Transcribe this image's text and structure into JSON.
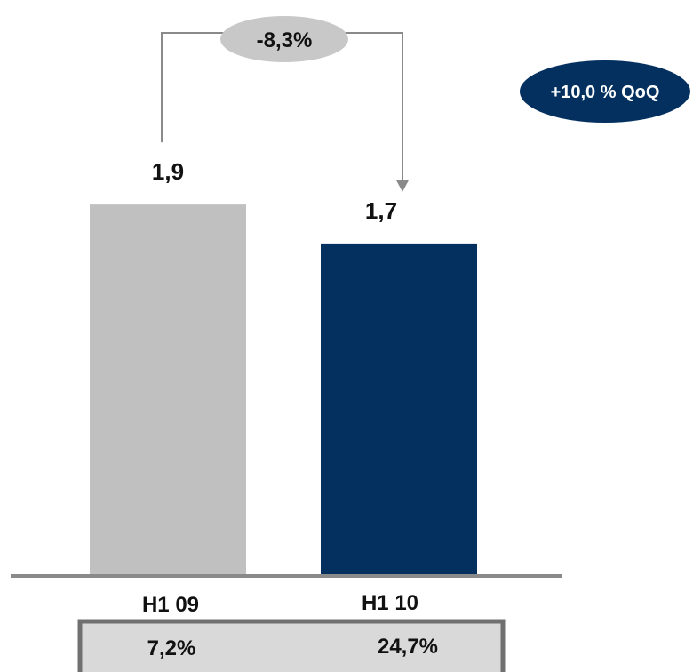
{
  "chart_data": {
    "type": "bar",
    "categories": [
      "H1 09",
      "H1 10"
    ],
    "values": [
      1.9,
      1.7
    ],
    "data_labels": [
      "1,9",
      "1,7"
    ],
    "ylim": [
      0,
      2.7
    ],
    "bar_colors": [
      "#c0c0c0",
      "#03305f"
    ],
    "change_label": "-8,3%",
    "qoq_badge": "+10,0 % QoQ",
    "footer_values": [
      "7,2%",
      "24,7%"
    ],
    "grid": false
  },
  "colors": {
    "axis": "#808080",
    "change_pill": "#c8c8c8",
    "qoq_badge": "#03305f",
    "footer_box": "#d9d9d9"
  }
}
